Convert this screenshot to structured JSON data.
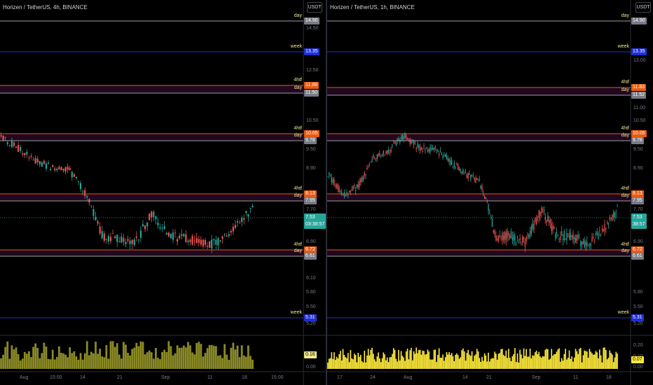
{
  "panels": [
    {
      "title": "Horizen / TetherUS, 4h, BINANCE",
      "currency": "USDT",
      "price_ticks": [
        "14.50",
        "12.50",
        "10.50",
        "9.50",
        "8.90",
        "7.70",
        "6.90",
        "6.10",
        "5.80",
        "5.50",
        "5.20"
      ],
      "levels": [
        {
          "name": "day",
          "value": "14.90",
          "color": "#787b86"
        },
        {
          "name": "week",
          "value": "13.35",
          "color": "#1f2fd6"
        },
        {
          "name": "4htf",
          "value": "11.88",
          "color": "#e85a12"
        },
        {
          "name": "day",
          "value": "11.50",
          "color": "#787b86"
        },
        {
          "name": "4htf",
          "value": "10.05",
          "color": "#e85a12"
        },
        {
          "name": "day",
          "value": "9.78",
          "color": "#787b86"
        },
        {
          "name": "4htf",
          "value": "8.13",
          "color": "#e85a12"
        },
        {
          "name": "day",
          "value": "7.95",
          "color": "#787b86"
        },
        {
          "name": "4htf",
          "value": "6.72",
          "color": "#e85a12"
        },
        {
          "name": "day",
          "value": "6.61",
          "color": "#787b86"
        },
        {
          "name": "week",
          "value": "5.31",
          "color": "#1f2fd6"
        }
      ],
      "last_price": "7.53",
      "countdown": "03:38:57",
      "volume_ticks": [
        "0.00"
      ],
      "volume_last": "0.16",
      "volume_color": "#9a9a2a",
      "time_ticks": [
        "Aug",
        "15:00",
        "14",
        "21",
        "Sep",
        "11",
        "18",
        "15:00"
      ]
    },
    {
      "title": "Horizen / TetherUS, 1h, BINANCE",
      "currency": "USDT",
      "price_ticks": [
        "13.00",
        "11.00",
        "10.50",
        "9.50",
        "8.90",
        "7.70",
        "6.90",
        "5.80",
        "5.50",
        "5.20"
      ],
      "levels": [
        {
          "name": "day",
          "value": "14.90",
          "color": "#787b86"
        },
        {
          "name": "week",
          "value": "13.35",
          "color": "#1f2fd6"
        },
        {
          "name": "4htf",
          "value": "11.83",
          "color": "#e85a12"
        },
        {
          "name": "day",
          "value": "11.52",
          "color": "#787b86"
        },
        {
          "name": "4htf",
          "value": "10.05",
          "color": "#e85a12"
        },
        {
          "name": "day",
          "value": "9.78",
          "color": "#787b86"
        },
        {
          "name": "4htf",
          "value": "8.13",
          "color": "#e85a12"
        },
        {
          "name": "day",
          "value": "7.95",
          "color": "#787b86"
        },
        {
          "name": "4htf",
          "value": "6.72",
          "color": "#e85a12"
        },
        {
          "name": "day",
          "value": "6.61",
          "color": "#787b86"
        },
        {
          "name": "week",
          "value": "5.31",
          "color": "#1f2fd6"
        }
      ],
      "last_price": "7.53",
      "countdown": "38:57",
      "volume_ticks": [
        "0.20",
        "0.10",
        "0.00"
      ],
      "volume_last": "0.07",
      "volume_color": "#ffeb3b",
      "time_ticks": [
        "17",
        "24",
        "Aug",
        "14",
        "21",
        "Sep",
        "11",
        "18"
      ]
    }
  ],
  "colors": {
    "up_candle": "#26a69a",
    "down_candle": "#ef5350",
    "last_price": "#26a69a"
  }
}
